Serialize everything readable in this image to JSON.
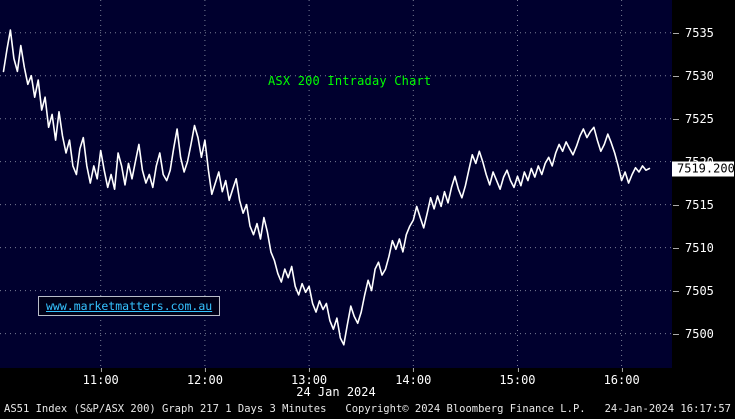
{
  "watermark": "www.marketmatters.com.au",
  "x_axis_date": "24 Jan 2024",
  "footer": {
    "left": "AS51 Index (S&P/ASX 200) Graph 217 1 Days 3 Minutes",
    "center": "Copyright© 2024 Bloomberg Finance L.P.",
    "right": "24-Jan-2024 16:17:57"
  },
  "colors": {
    "chart_background": "#00002e",
    "outer_background": "#000000",
    "grid": "#8f95a8",
    "line": "#ffffff",
    "title": "#00ff00",
    "watermark_text": "#35c2ff",
    "last_price_bg": "#ffffff",
    "last_price_text": "#000000"
  },
  "chart_data": {
    "type": "line",
    "title": "ASX 200 Intraday Chart",
    "xlabel": "",
    "ylabel": "",
    "x_min": "10:02",
    "x_max": "16:29",
    "x_ticks": [
      "11:00",
      "12:00",
      "13:00",
      "14:00",
      "15:00",
      "16:00"
    ],
    "y_range": [
      7496,
      7538.8
    ],
    "y_ticks": [
      7500,
      7505,
      7510,
      7515,
      7520,
      7525,
      7530,
      7535
    ],
    "last_price": 7519.2,
    "last_price_label": "7519.200",
    "grid": "dashed",
    "legend": "none",
    "points": [
      [
        "10:04",
        7530.5
      ],
      [
        "10:06",
        7533
      ],
      [
        "10:08",
        7535.3
      ],
      [
        "10:10",
        7532
      ],
      [
        "10:12",
        7530.5
      ],
      [
        "10:14",
        7533.5
      ],
      [
        "10:16",
        7531
      ],
      [
        "10:18",
        7529
      ],
      [
        "10:20",
        7530
      ],
      [
        "10:22",
        7527.5
      ],
      [
        "10:24",
        7529.5
      ],
      [
        "10:26",
        7526
      ],
      [
        "10:28",
        7527.5
      ],
      [
        "10:30",
        7524
      ],
      [
        "10:32",
        7525.5
      ],
      [
        "10:34",
        7522.5
      ],
      [
        "10:36",
        7525.8
      ],
      [
        "10:38",
        7523
      ],
      [
        "10:40",
        7521
      ],
      [
        "10:42",
        7522.5
      ],
      [
        "10:44",
        7519.5
      ],
      [
        "10:46",
        7518.5
      ],
      [
        "10:48",
        7521.5
      ],
      [
        "10:50",
        7522.8
      ],
      [
        "10:52",
        7519.5
      ],
      [
        "10:54",
        7517.5
      ],
      [
        "10:56",
        7519.5
      ],
      [
        "10:58",
        7518
      ],
      [
        "11:00",
        7521.3
      ],
      [
        "11:02",
        7519
      ],
      [
        "11:04",
        7517
      ],
      [
        "11:06",
        7518.5
      ],
      [
        "11:08",
        7516.8
      ],
      [
        "11:10",
        7521
      ],
      [
        "11:12",
        7519.5
      ],
      [
        "11:14",
        7517.3
      ],
      [
        "11:16",
        7519.8
      ],
      [
        "11:18",
        7518
      ],
      [
        "11:20",
        7520
      ],
      [
        "11:22",
        7522
      ],
      [
        "11:24",
        7519
      ],
      [
        "11:26",
        7517.5
      ],
      [
        "11:28",
        7518.5
      ],
      [
        "11:30",
        7517
      ],
      [
        "11:32",
        7519.5
      ],
      [
        "11:34",
        7521
      ],
      [
        "11:36",
        7518.5
      ],
      [
        "11:38",
        7517.8
      ],
      [
        "11:40",
        7519
      ],
      [
        "11:42",
        7521.5
      ],
      [
        "11:44",
        7523.8
      ],
      [
        "11:46",
        7520.5
      ],
      [
        "11:48",
        7518.8
      ],
      [
        "11:50",
        7520
      ],
      [
        "11:52",
        7522
      ],
      [
        "11:54",
        7524.2
      ],
      [
        "11:56",
        7522.8
      ],
      [
        "11:58",
        7520.5
      ],
      [
        "12:00",
        7522.5
      ],
      [
        "12:02",
        7519
      ],
      [
        "12:04",
        7516.2
      ],
      [
        "12:06",
        7517.5
      ],
      [
        "12:08",
        7518.8
      ],
      [
        "12:10",
        7516.5
      ],
      [
        "12:12",
        7517.8
      ],
      [
        "12:14",
        7515.5
      ],
      [
        "12:16",
        7516.8
      ],
      [
        "12:18",
        7518
      ],
      [
        "12:20",
        7515.5
      ],
      [
        "12:22",
        7514
      ],
      [
        "12:24",
        7515
      ],
      [
        "12:26",
        7512.5
      ],
      [
        "12:28",
        7511.5
      ],
      [
        "12:30",
        7512.8
      ],
      [
        "12:32",
        7511
      ],
      [
        "12:34",
        7513.5
      ],
      [
        "12:36",
        7511.8
      ],
      [
        "12:38",
        7509.5
      ],
      [
        "12:40",
        7508.5
      ],
      [
        "12:42",
        7507
      ],
      [
        "12:44",
        7506
      ],
      [
        "12:46",
        7507.5
      ],
      [
        "12:48",
        7506.5
      ],
      [
        "12:50",
        7507.8
      ],
      [
        "12:52",
        7505.5
      ],
      [
        "12:54",
        7504.5
      ],
      [
        "12:56",
        7505.8
      ],
      [
        "12:58",
        7504.8
      ],
      [
        "13:00",
        7505.5
      ],
      [
        "13:02",
        7503.5
      ],
      [
        "13:04",
        7502.5
      ],
      [
        "13:06",
        7503.8
      ],
      [
        "13:08",
        7502.8
      ],
      [
        "13:10",
        7503.5
      ],
      [
        "13:12",
        7501.5
      ],
      [
        "13:14",
        7500.5
      ],
      [
        "13:16",
        7501.8
      ],
      [
        "13:18",
        7499.5
      ],
      [
        "13:20",
        7498.7
      ],
      [
        "13:22",
        7501
      ],
      [
        "13:24",
        7503.2
      ],
      [
        "13:26",
        7502
      ],
      [
        "13:28",
        7501.2
      ],
      [
        "13:30",
        7502.5
      ],
      [
        "13:32",
        7504.5
      ],
      [
        "13:34",
        7506.2
      ],
      [
        "13:36",
        7505
      ],
      [
        "13:38",
        7507.5
      ],
      [
        "13:40",
        7508.3
      ],
      [
        "13:42",
        7506.8
      ],
      [
        "13:44",
        7507.5
      ],
      [
        "13:46",
        7509
      ],
      [
        "13:48",
        7510.8
      ],
      [
        "13:50",
        7509.8
      ],
      [
        "13:52",
        7511
      ],
      [
        "13:54",
        7509.5
      ],
      [
        "13:56",
        7511.5
      ],
      [
        "13:58",
        7512.5
      ],
      [
        "14:00",
        7513.2
      ],
      [
        "14:02",
        7514.8
      ],
      [
        "14:04",
        7513.5
      ],
      [
        "14:06",
        7512.3
      ],
      [
        "14:08",
        7514
      ],
      [
        "14:10",
        7515.8
      ],
      [
        "14:12",
        7514.5
      ],
      [
        "14:14",
        7516
      ],
      [
        "14:16",
        7514.8
      ],
      [
        "14:18",
        7516.5
      ],
      [
        "14:20",
        7515.2
      ],
      [
        "14:22",
        7517
      ],
      [
        "14:24",
        7518.3
      ],
      [
        "14:26",
        7516.8
      ],
      [
        "14:28",
        7515.8
      ],
      [
        "14:30",
        7517.2
      ],
      [
        "14:32",
        7519
      ],
      [
        "14:34",
        7520.8
      ],
      [
        "14:36",
        7519.8
      ],
      [
        "14:38",
        7521.2
      ],
      [
        "14:40",
        7520
      ],
      [
        "14:42",
        7518.5
      ],
      [
        "14:44",
        7517.3
      ],
      [
        "14:46",
        7518.8
      ],
      [
        "14:48",
        7517.8
      ],
      [
        "14:50",
        7516.8
      ],
      [
        "14:52",
        7518.2
      ],
      [
        "14:54",
        7519
      ],
      [
        "14:56",
        7517.8
      ],
      [
        "14:58",
        7517
      ],
      [
        "15:00",
        7518.3
      ],
      [
        "15:02",
        7517.2
      ],
      [
        "15:04",
        7518.8
      ],
      [
        "15:06",
        7517.8
      ],
      [
        "15:08",
        7519.2
      ],
      [
        "15:10",
        7518.2
      ],
      [
        "15:12",
        7519.5
      ],
      [
        "15:14",
        7518.5
      ],
      [
        "15:16",
        7519.8
      ],
      [
        "15:18",
        7520.5
      ],
      [
        "15:20",
        7519.5
      ],
      [
        "15:22",
        7521
      ],
      [
        "15:24",
        7522
      ],
      [
        "15:26",
        7521.2
      ],
      [
        "15:28",
        7522.3
      ],
      [
        "15:30",
        7521.5
      ],
      [
        "15:32",
        7520.8
      ],
      [
        "15:34",
        7521.8
      ],
      [
        "15:36",
        7523
      ],
      [
        "15:38",
        7523.8
      ],
      [
        "15:40",
        7522.8
      ],
      [
        "15:42",
        7523.5
      ],
      [
        "15:44",
        7524
      ],
      [
        "15:46",
        7522.5
      ],
      [
        "15:48",
        7521.2
      ],
      [
        "15:50",
        7522
      ],
      [
        "15:52",
        7523.2
      ],
      [
        "15:54",
        7522.2
      ],
      [
        "15:56",
        7521
      ],
      [
        "15:58",
        7519.5
      ],
      [
        "16:00",
        7517.8
      ],
      [
        "16:02",
        7518.8
      ],
      [
        "16:04",
        7517.5
      ],
      [
        "16:06",
        7518.5
      ],
      [
        "16:08",
        7519.3
      ],
      [
        "16:10",
        7518.8
      ],
      [
        "16:12",
        7519.5
      ],
      [
        "16:14",
        7519
      ],
      [
        "16:16",
        7519.2
      ]
    ]
  }
}
